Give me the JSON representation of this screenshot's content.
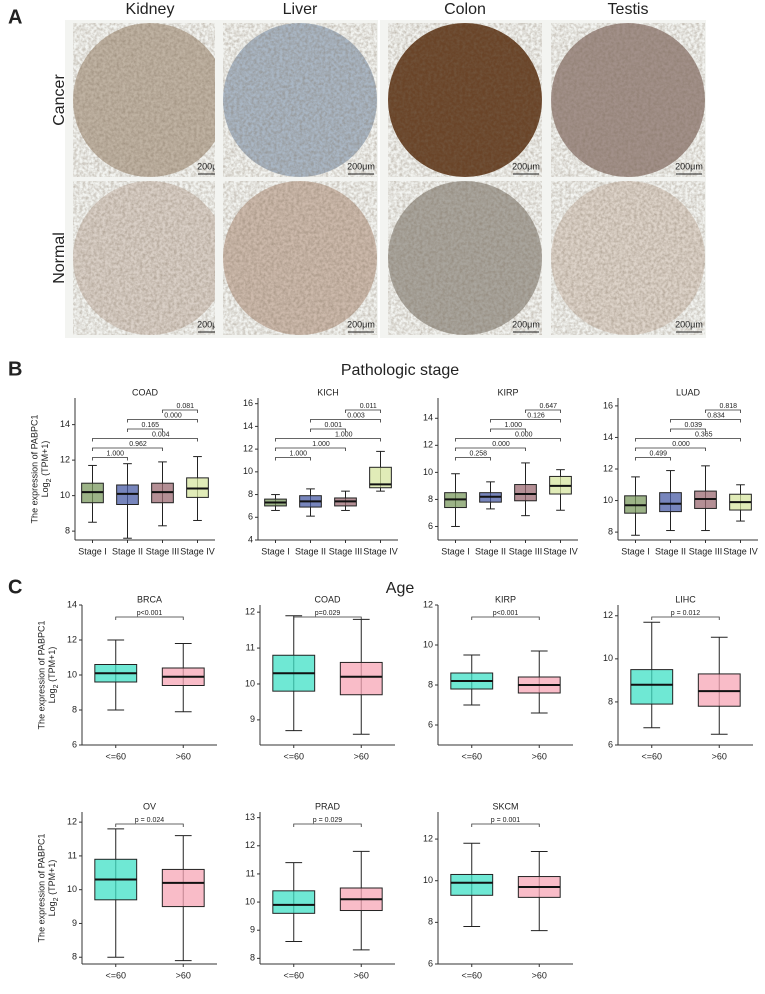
{
  "figure": {
    "panel_labels": [
      "A",
      "B",
      "C"
    ],
    "columns": [
      "Kidney",
      "Liver",
      "Colon",
      "Testis"
    ],
    "rows": [
      "Cancer",
      "Normal"
    ],
    "scale_bar": "200μm",
    "section_titles": [
      "Pathologic stage",
      "Age"
    ],
    "ylabel": {
      "line1": "The expression of PABPC1",
      "log": "Log",
      "sub": "2",
      "rest": " (TPM+1)"
    }
  },
  "chart_data": [
    {
      "type": "box",
      "title": "COAD",
      "categories": [
        "Stage I",
        "Stage II",
        "Stage III",
        "Stage IV"
      ],
      "colors": [
        "#7b9a5f",
        "#4a5ca6",
        "#9b6a72",
        "#d7e6a0"
      ],
      "ylim": [
        7.5,
        15.5
      ],
      "yticks": [
        8,
        10,
        12,
        14
      ],
      "boxes": [
        {
          "min": 8.5,
          "q1": 9.6,
          "median": 10.2,
          "q3": 10.7,
          "max": 11.7
        },
        {
          "min": 7.6,
          "q1": 9.5,
          "median": 10.1,
          "q3": 10.6,
          "max": 11.8
        },
        {
          "min": 8.3,
          "q1": 9.6,
          "median": 10.2,
          "q3": 10.7,
          "max": 11.9
        },
        {
          "min": 8.6,
          "q1": 9.9,
          "median": 10.4,
          "q3": 11.0,
          "max": 12.2
        }
      ],
      "comparisons": [
        {
          "pair": [
            "Stage I",
            "Stage II"
          ],
          "label": "1.000"
        },
        {
          "pair": [
            "Stage I",
            "Stage III"
          ],
          "label": "0.962"
        },
        {
          "pair": [
            "Stage I",
            "Stage IV"
          ],
          "label": "0.004"
        },
        {
          "pair": [
            "Stage II",
            "Stage III"
          ],
          "label": "0.165"
        },
        {
          "pair": [
            "Stage II",
            "Stage IV"
          ],
          "label": "0.000"
        },
        {
          "pair": [
            "Stage III",
            "Stage IV"
          ],
          "label": "0.081"
        }
      ]
    },
    {
      "type": "box",
      "title": "KICH",
      "categories": [
        "Stage I",
        "Stage II",
        "Stage III",
        "Stage IV"
      ],
      "colors": [
        "#7b9a5f",
        "#4a5ca6",
        "#9b6a72",
        "#d7e6a0"
      ],
      "ylim": [
        4,
        16.5
      ],
      "yticks": [
        4,
        6,
        8,
        10,
        12,
        14,
        16
      ],
      "boxes": [
        {
          "min": 6.6,
          "q1": 7.0,
          "median": 7.3,
          "q3": 7.6,
          "max": 8.0
        },
        {
          "min": 6.1,
          "q1": 6.9,
          "median": 7.4,
          "q3": 7.9,
          "max": 8.5
        },
        {
          "min": 6.6,
          "q1": 7.0,
          "median": 7.4,
          "q3": 7.7,
          "max": 8.3
        },
        {
          "min": 8.3,
          "q1": 8.6,
          "median": 8.9,
          "q3": 10.4,
          "max": 11.8
        }
      ],
      "comparisons": [
        {
          "pair": [
            "Stage I",
            "Stage II"
          ],
          "label": "1.000"
        },
        {
          "pair": [
            "Stage I",
            "Stage III"
          ],
          "label": "1.000"
        },
        {
          "pair": [
            "Stage I",
            "Stage IV"
          ],
          "label": "1.000"
        },
        {
          "pair": [
            "Stage II",
            "Stage III"
          ],
          "label": "0.001"
        },
        {
          "pair": [
            "Stage II",
            "Stage IV"
          ],
          "label": "0.003"
        },
        {
          "pair": [
            "Stage III",
            "Stage IV"
          ],
          "label": "0.011"
        }
      ]
    },
    {
      "type": "box",
      "title": "KIRP",
      "categories": [
        "Stage I",
        "Stage II",
        "Stage III",
        "Stage IV"
      ],
      "colors": [
        "#7b9a5f",
        "#4a5ca6",
        "#9b6a72",
        "#d7e6a0"
      ],
      "ylim": [
        5,
        15.5
      ],
      "yticks": [
        6,
        8,
        10,
        12,
        14
      ],
      "boxes": [
        {
          "min": 6.0,
          "q1": 7.4,
          "median": 8.0,
          "q3": 8.5,
          "max": 9.9
        },
        {
          "min": 7.3,
          "q1": 7.8,
          "median": 8.2,
          "q3": 8.5,
          "max": 9.3
        },
        {
          "min": 6.8,
          "q1": 7.9,
          "median": 8.4,
          "q3": 9.1,
          "max": 10.7
        },
        {
          "min": 7.2,
          "q1": 8.4,
          "median": 9.0,
          "q3": 9.7,
          "max": 10.2
        }
      ],
      "comparisons": [
        {
          "pair": [
            "Stage I",
            "Stage II"
          ],
          "label": "0.258"
        },
        {
          "pair": [
            "Stage I",
            "Stage III"
          ],
          "label": "0.000"
        },
        {
          "pair": [
            "Stage I",
            "Stage IV"
          ],
          "label": "0.000"
        },
        {
          "pair": [
            "Stage II",
            "Stage III"
          ],
          "label": "1.000"
        },
        {
          "pair": [
            "Stage II",
            "Stage IV"
          ],
          "label": "0.126"
        },
        {
          "pair": [
            "Stage III",
            "Stage IV"
          ],
          "label": "0.647"
        }
      ]
    },
    {
      "type": "box",
      "title": "LUAD",
      "categories": [
        "Stage I",
        "Stage II",
        "Stage III",
        "Stage IV"
      ],
      "colors": [
        "#7b9a5f",
        "#4a5ca6",
        "#9b6a72",
        "#d7e6a0"
      ],
      "ylim": [
        7.5,
        16.5
      ],
      "yticks": [
        8,
        10,
        12,
        14,
        16
      ],
      "boxes": [
        {
          "min": 7.8,
          "q1": 9.2,
          "median": 9.7,
          "q3": 10.3,
          "max": 11.5
        },
        {
          "min": 8.1,
          "q1": 9.3,
          "median": 9.8,
          "q3": 10.5,
          "max": 11.9
        },
        {
          "min": 8.1,
          "q1": 9.5,
          "median": 10.1,
          "q3": 10.6,
          "max": 12.2
        },
        {
          "min": 8.7,
          "q1": 9.4,
          "median": 9.9,
          "q3": 10.4,
          "max": 11.0
        }
      ],
      "comparisons": [
        {
          "pair": [
            "Stage I",
            "Stage II"
          ],
          "label": "0.499"
        },
        {
          "pair": [
            "Stage I",
            "Stage III"
          ],
          "label": "0.000"
        },
        {
          "pair": [
            "Stage I",
            "Stage IV"
          ],
          "label": "0.365"
        },
        {
          "pair": [
            "Stage II",
            "Stage III"
          ],
          "label": "0.039"
        },
        {
          "pair": [
            "Stage II",
            "Stage IV"
          ],
          "label": "0.834"
        },
        {
          "pair": [
            "Stage III",
            "Stage IV"
          ],
          "label": "0.818"
        }
      ]
    },
    {
      "type": "box",
      "title": "BRCA",
      "categories": [
        "<=60",
        ">60"
      ],
      "colors": [
        "#3fe0c5",
        "#f7a6b6"
      ],
      "ylim": [
        6,
        14
      ],
      "yticks": [
        6,
        8,
        10,
        12,
        14
      ],
      "boxes": [
        {
          "min": 8.0,
          "q1": 9.6,
          "median": 10.1,
          "q3": 10.6,
          "max": 12.0
        },
        {
          "min": 7.9,
          "q1": 9.4,
          "median": 9.9,
          "q3": 10.4,
          "max": 11.8
        }
      ],
      "comparisons": [
        {
          "pair": [
            "<=60",
            ">60"
          ],
          "label": "p<0.001"
        }
      ]
    },
    {
      "type": "box",
      "title": "COAD",
      "categories": [
        "<=60",
        ">60"
      ],
      "colors": [
        "#3fe0c5",
        "#f7a6b6"
      ],
      "ylim": [
        8.3,
        12.2
      ],
      "yticks": [
        9,
        10,
        11,
        12
      ],
      "boxes": [
        {
          "min": 8.7,
          "q1": 9.8,
          "median": 10.3,
          "q3": 10.8,
          "max": 11.9
        },
        {
          "min": 8.6,
          "q1": 9.7,
          "median": 10.2,
          "q3": 10.6,
          "max": 11.8
        }
      ],
      "comparisons": [
        {
          "pair": [
            "<=60",
            ">60"
          ],
          "label": "p=0.029"
        }
      ]
    },
    {
      "type": "box",
      "title": "KIRP",
      "categories": [
        "<=60",
        ">60"
      ],
      "colors": [
        "#3fe0c5",
        "#f7a6b6"
      ],
      "ylim": [
        5,
        12
      ],
      "yticks": [
        6,
        8,
        10,
        12
      ],
      "boxes": [
        {
          "min": 7.0,
          "q1": 7.8,
          "median": 8.2,
          "q3": 8.6,
          "max": 9.5
        },
        {
          "min": 6.6,
          "q1": 7.6,
          "median": 8.0,
          "q3": 8.4,
          "max": 9.7
        }
      ],
      "comparisons": [
        {
          "pair": [
            "<=60",
            ">60"
          ],
          "label": "p<0.001"
        }
      ]
    },
    {
      "type": "box",
      "title": "LIHC",
      "categories": [
        "<=60",
        ">60"
      ],
      "colors": [
        "#3fe0c5",
        "#f7a6b6"
      ],
      "ylim": [
        6,
        12.5
      ],
      "yticks": [
        6,
        8,
        10,
        12
      ],
      "boxes": [
        {
          "min": 6.8,
          "q1": 7.9,
          "median": 8.8,
          "q3": 9.5,
          "max": 11.7
        },
        {
          "min": 6.5,
          "q1": 7.8,
          "median": 8.5,
          "q3": 9.3,
          "max": 11.0
        }
      ],
      "comparisons": [
        {
          "pair": [
            "<=60",
            ">60"
          ],
          "label": "p = 0.012"
        }
      ]
    },
    {
      "type": "box",
      "title": "OV",
      "categories": [
        "<=60",
        ">60"
      ],
      "colors": [
        "#3fe0c5",
        "#f7a6b6"
      ],
      "ylim": [
        7.8,
        12.3
      ],
      "yticks": [
        8,
        9,
        10,
        11,
        12
      ],
      "boxes": [
        {
          "min": 8.0,
          "q1": 9.7,
          "median": 10.3,
          "q3": 10.9,
          "max": 11.8
        },
        {
          "min": 7.9,
          "q1": 9.5,
          "median": 10.2,
          "q3": 10.6,
          "max": 11.6
        }
      ],
      "comparisons": [
        {
          "pair": [
            "<=60",
            ">60"
          ],
          "label": "p = 0.024"
        }
      ]
    },
    {
      "type": "box",
      "title": "PRAD",
      "categories": [
        "<=60",
        ">60"
      ],
      "colors": [
        "#3fe0c5",
        "#f7a6b6"
      ],
      "ylim": [
        7.8,
        13.2
      ],
      "yticks": [
        8,
        9,
        10,
        11,
        12,
        13
      ],
      "boxes": [
        {
          "min": 8.6,
          "q1": 9.6,
          "median": 9.9,
          "q3": 10.4,
          "max": 11.4
        },
        {
          "min": 8.3,
          "q1": 9.7,
          "median": 10.1,
          "q3": 10.5,
          "max": 11.8
        }
      ],
      "comparisons": [
        {
          "pair": [
            "<=60",
            ">60"
          ],
          "label": "p = 0.029"
        }
      ]
    },
    {
      "type": "box",
      "title": "SKCM",
      "categories": [
        "<=60",
        ">60"
      ],
      "colors": [
        "#3fe0c5",
        "#f7a6b6"
      ],
      "ylim": [
        6,
        13.3
      ],
      "yticks": [
        6,
        8,
        10,
        12
      ],
      "boxes": [
        {
          "min": 7.8,
          "q1": 9.3,
          "median": 9.9,
          "q3": 10.3,
          "max": 11.8
        },
        {
          "min": 7.6,
          "q1": 9.2,
          "median": 9.7,
          "q3": 10.2,
          "max": 11.4
        }
      ],
      "comparisons": [
        {
          "pair": [
            "<=60",
            ">60"
          ],
          "label": "p = 0.001"
        }
      ]
    }
  ]
}
